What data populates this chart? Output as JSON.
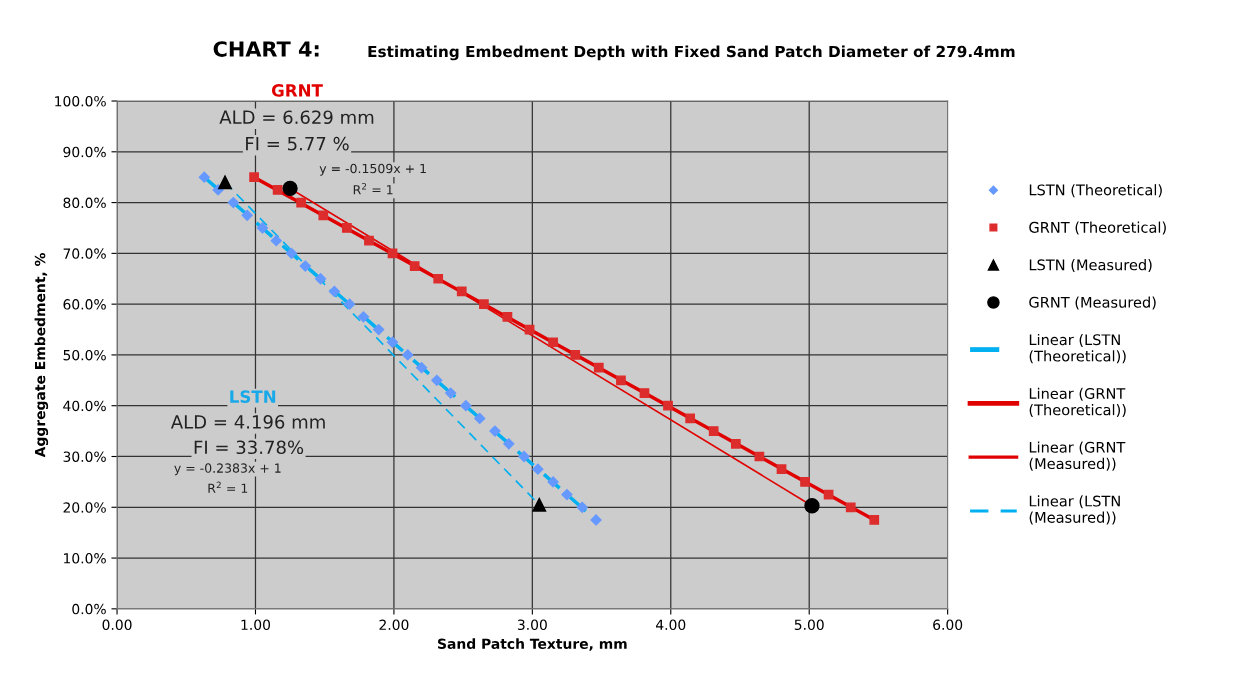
{
  "chart_data": {
    "type": "scatter",
    "title": "CHART 4:",
    "subtitle": "Estimating Embedment Depth with Fixed Sand Patch Diameter of 279.4mm",
    "xlabel": "Sand Patch Texture, mm",
    "ylabel": "Aggregate Embedment, %",
    "xlim": [
      0,
      6
    ],
    "ylim": [
      0,
      100
    ],
    "xticks": [
      {
        "value": 0,
        "label": "0.00"
      },
      {
        "value": 1,
        "label": "1.00"
      },
      {
        "value": 2,
        "label": "2.00"
      },
      {
        "value": 3,
        "label": "3.00"
      },
      {
        "value": 4,
        "label": "4.00"
      },
      {
        "value": 5,
        "label": "5.00"
      },
      {
        "value": 6,
        "label": "6.00"
      }
    ],
    "yticks": [
      {
        "value": 0,
        "label": "0.0%"
      },
      {
        "value": 10,
        "label": "10.0%"
      },
      {
        "value": 20,
        "label": "20.0%"
      },
      {
        "value": 30,
        "label": "30.0%"
      },
      {
        "value": 40,
        "label": "40.0%"
      },
      {
        "value": 50,
        "label": "50.0%"
      },
      {
        "value": 60,
        "label": "60.0%"
      },
      {
        "value": 70,
        "label": "70.0%"
      },
      {
        "value": 80,
        "label": "80.0%"
      },
      {
        "value": 90,
        "label": "90.0%"
      },
      {
        "value": 100,
        "label": "100.0%"
      }
    ],
    "grid": true,
    "legend": "right",
    "series": [
      {
        "name": "LSTN (Theoretical)",
        "marker": "diamond",
        "color": "#6699ff",
        "x": [
          0.63,
          0.73,
          0.84,
          0.94,
          1.05,
          1.15,
          1.26,
          1.36,
          1.47,
          1.57,
          1.68,
          1.78,
          1.89,
          1.99,
          2.1,
          2.2,
          2.31,
          2.41,
          2.52,
          2.62,
          2.73,
          2.83,
          2.94,
          3.04,
          3.15,
          3.25,
          3.36,
          3.46
        ],
        "values": [
          85,
          82.5,
          80,
          77.5,
          75,
          72.5,
          70,
          67.5,
          65,
          62.5,
          60,
          57.5,
          55,
          52.5,
          50,
          47.5,
          45,
          42.5,
          40,
          37.5,
          35,
          32.5,
          30,
          27.5,
          25,
          22.5,
          20,
          17.5
        ]
      },
      {
        "name": "GRNT (Theoretical)",
        "marker": "square",
        "color": "#dd2c2c",
        "x": [
          0.99,
          1.16,
          1.33,
          1.49,
          1.66,
          1.82,
          1.99,
          2.15,
          2.32,
          2.49,
          2.65,
          2.82,
          2.98,
          3.15,
          3.31,
          3.48,
          3.64,
          3.81,
          3.98,
          4.14,
          4.31,
          4.47,
          4.64,
          4.8,
          4.97,
          5.14,
          5.3,
          5.47
        ],
        "values": [
          85,
          82.5,
          80,
          77.5,
          75,
          72.5,
          70,
          67.5,
          65,
          62.5,
          60,
          57.5,
          55,
          52.5,
          50,
          47.5,
          45,
          42.5,
          40,
          37.5,
          35,
          32.5,
          30,
          27.5,
          25,
          22.5,
          20,
          17.5
        ]
      },
      {
        "name": "LSTN (Measured)",
        "marker": "triangle",
        "color": "#000000",
        "x": [
          0.78,
          3.05
        ],
        "values": [
          84,
          20.5
        ]
      },
      {
        "name": "GRNT (Measured)",
        "marker": "circle",
        "color": "#000000",
        "x": [
          1.25,
          5.02
        ],
        "values": [
          82.8,
          20.3
        ]
      },
      {
        "name": "Linear (LSTN (Theoretical))",
        "type": "line",
        "line_style": "dashed",
        "color": "#00b0f0",
        "x": [
          0.63,
          3.46
        ],
        "values": [
          85,
          17.5
        ]
      },
      {
        "name": "Linear (GRNT (Theoretical))",
        "type": "line",
        "line_style": "solid",
        "color": "#e00000",
        "x": [
          0.99,
          5.47
        ],
        "values": [
          85,
          17.5
        ]
      },
      {
        "name": "Linear (GRNT (Measured))",
        "type": "line",
        "line_style": "solid",
        "color": "#e00000",
        "x": [
          1.25,
          5.02
        ],
        "values": [
          82.8,
          20.3
        ]
      },
      {
        "name": "Linear (LSTN (Measured))",
        "type": "line",
        "line_style": "dashed",
        "color": "#00b0f0",
        "x": [
          0.78,
          3.05
        ],
        "values": [
          84,
          20.5
        ]
      }
    ],
    "annotations": [
      "GRNT",
      "ALD = 6.629 mm",
      "FI = 5.77 %",
      "y = -0.1509x + 1",
      "R$^{2}$ = 1",
      "LSTN",
      "ALD = 4.196 mm",
      "FI = 33.78%",
      "y = -0.2383x + 1",
      "R$^{2}$ = 1"
    ]
  }
}
